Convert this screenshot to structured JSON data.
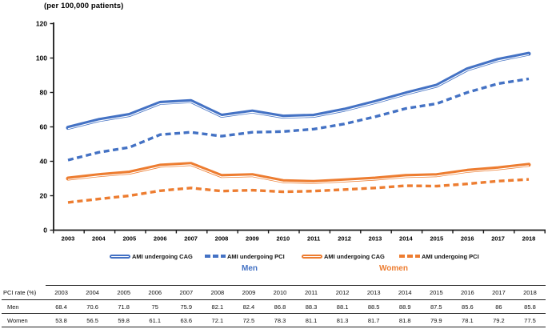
{
  "title": "(per 100,000 patients)",
  "chart_data": {
    "type": "line",
    "x": [
      2003,
      2004,
      2005,
      2006,
      2007,
      2008,
      2009,
      2010,
      2011,
      2012,
      2013,
      2014,
      2015,
      2016,
      2017,
      2018
    ],
    "ylabel": "(per 100,000 patients)",
    "ylim": [
      0,
      120
    ],
    "yticks": [
      0,
      20,
      40,
      60,
      80,
      100,
      120
    ],
    "grid": "off",
    "legend_position": "bottom",
    "series": [
      {
        "name": "AMI undergoing CAG",
        "group": "Men",
        "style": "solid",
        "color": "#4472C4",
        "values": [
          59.5,
          64,
          67,
          74,
          75,
          66.5,
          69,
          66,
          66.5,
          70,
          74.5,
          79.5,
          84,
          93.5,
          99,
          102.5
        ]
      },
      {
        "name": "AMI undergoing PCI",
        "group": "Men",
        "style": "dashed",
        "color": "#4472C4",
        "values": [
          40.7,
          45.2,
          48.1,
          55.5,
          56.9,
          54.6,
          56.9,
          57.3,
          58.7,
          61.7,
          65.9,
          70.7,
          73.5,
          80,
          85.1,
          87.9
        ]
      },
      {
        "name": "AMI undergoing CAG",
        "group": "Women",
        "style": "solid",
        "color": "#ED7D31",
        "values": [
          30,
          32,
          33.5,
          37.5,
          38.5,
          31.5,
          32,
          28.5,
          28,
          29,
          30,
          31.5,
          32,
          34.5,
          36,
          38
        ]
      },
      {
        "name": "AMI undergoing PCI",
        "group": "Women",
        "style": "dashed",
        "color": "#ED7D31",
        "values": [
          16.1,
          18.1,
          20,
          22.9,
          24.5,
          22.7,
          23.2,
          22.3,
          22.7,
          23.6,
          24.5,
          25.8,
          25.6,
          26.9,
          28.5,
          29.5
        ]
      }
    ]
  },
  "legend": {
    "entries": [
      {
        "label": "AMI undergoing CAG",
        "style": "solid",
        "color": "#4472C4"
      },
      {
        "label": "AMI undergoing PCI",
        "style": "dashed",
        "color": "#4472C4"
      },
      {
        "label": "AMI undergoing CAG",
        "style": "solid",
        "color": "#ED7D31"
      },
      {
        "label": "AMI undergoing PCI",
        "style": "dashed",
        "color": "#ED7D31"
      }
    ],
    "groups": [
      {
        "label": "Men",
        "color": "#4472C4"
      },
      {
        "label": "Women",
        "color": "#ED7D31"
      }
    ]
  },
  "table": {
    "row_header": "PCI rate (%)",
    "columns": [
      "2003",
      "2004",
      "2005",
      "2006",
      "2007",
      "2008",
      "2009",
      "2010",
      "2011",
      "2012",
      "2013",
      "2014",
      "2015",
      "2016",
      "2017",
      "2018"
    ],
    "rows": [
      {
        "label": "Men",
        "values": [
          "68.4",
          "70.6",
          "71.8",
          "75",
          "75.9",
          "82.1",
          "82.4",
          "86.8",
          "88.3",
          "88.1",
          "88.5",
          "88.9",
          "87.5",
          "85.6",
          "86",
          "85.8"
        ]
      },
      {
        "label": "Women",
        "values": [
          "53.8",
          "56.5",
          "59.8",
          "61.1",
          "63.6",
          "72.1",
          "72.5",
          "78.3",
          "81.1",
          "81.3",
          "81.7",
          "81.8",
          "79.9",
          "78.1",
          "79.2",
          "77.5"
        ]
      }
    ]
  },
  "colors": {
    "men_accent": "#4472C4",
    "women_accent": "#ED7D31",
    "axis": "#1a1a1a"
  }
}
